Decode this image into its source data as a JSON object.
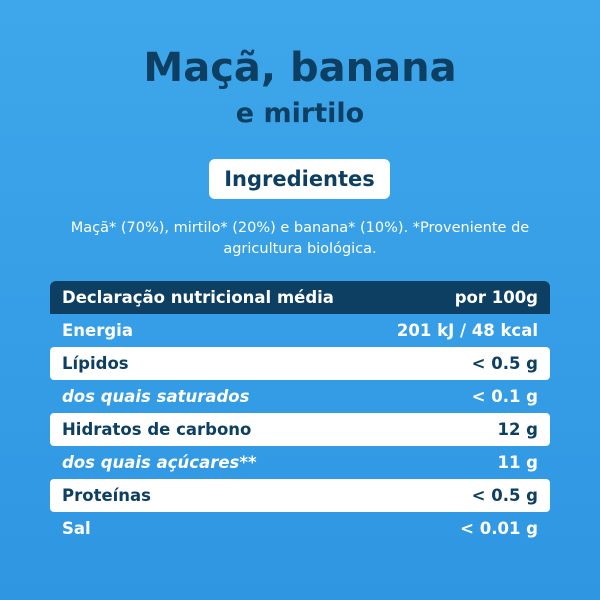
{
  "title": {
    "line1": "Maçã, banana",
    "line2": "e mirtilo"
  },
  "ingredients": {
    "heading": "Ingredientes",
    "text_line1": "Maçã* (70%), mirtilo* (20%) e banana* (10%). *Proveniente de",
    "text_line2": "agricultura biológica."
  },
  "nutrition": {
    "header_label": "Declaração nutricional média",
    "header_value": "por 100g",
    "rows": [
      {
        "label": "Energia",
        "value": "201 kJ / 48 kcal"
      },
      {
        "label": "Lípidos",
        "value": "< 0.5 g"
      },
      {
        "label": "dos quais saturados",
        "value": "< 0.1 g"
      },
      {
        "label": "Hidratos de carbono",
        "value": "12 g"
      },
      {
        "label": "dos quais açúcares**",
        "value": "11 g"
      },
      {
        "label": "Proteínas",
        "value": "< 0.5 g"
      },
      {
        "label": "Sal",
        "value": "< 0.01 g"
      }
    ]
  },
  "colors": {
    "background": "#3ea6ea",
    "dark_blue": "#0d3f63",
    "white": "#ffffff"
  }
}
